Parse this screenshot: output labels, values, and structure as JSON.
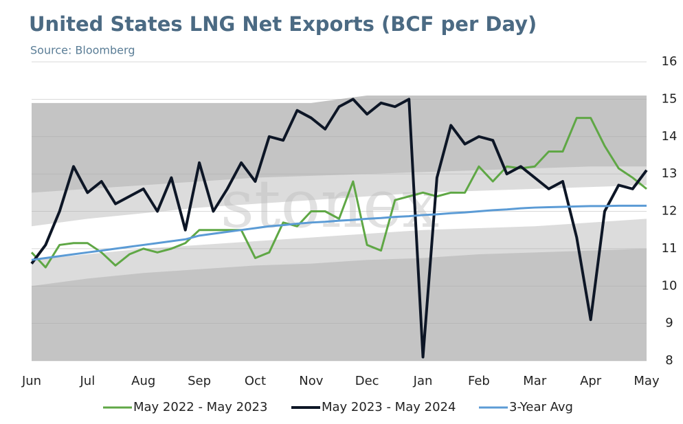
{
  "chart_data": {
    "type": "line",
    "title": "United States LNG Net Exports (BCF per Day)",
    "subtitle": "Source: Bloomberg",
    "watermark": "stonex",
    "categories": [
      "Jun",
      null,
      null,
      null,
      "Jul",
      null,
      null,
      null,
      "Aug",
      null,
      null,
      null,
      "Sep",
      null,
      null,
      null,
      "Oct",
      null,
      null,
      null,
      "Nov",
      null,
      null,
      null,
      "Dec",
      null,
      null,
      null,
      "Jan",
      null,
      null,
      null,
      "Feb",
      null,
      null,
      null,
      "Mar",
      null,
      null,
      null,
      "Apr",
      null,
      null,
      null,
      "May"
    ],
    "ylim": [
      8,
      16
    ],
    "yticks": [
      8,
      9,
      10,
      11,
      12,
      13,
      14,
      15,
      16
    ],
    "grid": true,
    "legend": "bottom",
    "bands": [
      {
        "color": "#c4c4c4",
        "lower": [
          8,
          8,
          8,
          8,
          8,
          8,
          8,
          8,
          8,
          8,
          8,
          8
        ],
        "upper": [
          14.9,
          14.9,
          14.9,
          14.9,
          14.9,
          14.9,
          15.1,
          15.1,
          15.1,
          15.1,
          15.1,
          15.1
        ]
      },
      {
        "color": "#dcdcdc",
        "lower": [
          10.0,
          10.2,
          10.35,
          10.45,
          10.55,
          10.6,
          10.7,
          10.75,
          10.85,
          10.9,
          10.95,
          11.0
        ],
        "upper": [
          12.5,
          12.6,
          12.7,
          12.8,
          12.9,
          12.95,
          13.0,
          13.05,
          13.1,
          13.15,
          13.2,
          13.2
        ]
      },
      {
        "color": "#ffffff",
        "lower": [
          10.7,
          10.85,
          11.0,
          11.1,
          11.2,
          11.3,
          11.4,
          11.5,
          11.55,
          11.6,
          11.7,
          11.8
        ],
        "upper": [
          11.6,
          11.8,
          11.95,
          12.1,
          12.2,
          12.3,
          12.4,
          12.5,
          12.55,
          12.6,
          12.65,
          12.7
        ]
      }
    ],
    "series": [
      {
        "name": "May 2022 - May 2023",
        "color": "#5fa745",
        "width": 3,
        "values": [
          10.9,
          10.5,
          11.1,
          11.15,
          11.15,
          10.9,
          10.55,
          10.85,
          11.0,
          10.9,
          11.0,
          11.15,
          11.5,
          11.5,
          11.5,
          11.5,
          10.75,
          10.9,
          11.7,
          11.6,
          12.0,
          12.0,
          11.8,
          12.8,
          11.1,
          10.95,
          12.3,
          12.4,
          12.5,
          12.4,
          12.5,
          12.5,
          13.2,
          12.8,
          13.2,
          13.15,
          13.2,
          13.6,
          13.6,
          14.5,
          14.5,
          13.75,
          13.15,
          12.9,
          12.6
        ]
      },
      {
        "name": "May 2023 - May 2024",
        "color": "#0d1626",
        "width": 4,
        "values": [
          10.6,
          11.1,
          12.0,
          13.2,
          12.5,
          12.8,
          12.2,
          12.4,
          12.6,
          12.0,
          12.9,
          11.5,
          13.3,
          12.0,
          12.6,
          13.3,
          12.8,
          14.0,
          13.9,
          14.7,
          14.5,
          14.2,
          14.8,
          15.0,
          14.6,
          14.9,
          14.8,
          15.0,
          8.1,
          12.9,
          14.3,
          13.8,
          14.0,
          13.9,
          13.0,
          13.2,
          12.9,
          12.6,
          12.8,
          11.3,
          9.1,
          12.0,
          12.7,
          12.6,
          13.1
        ]
      },
      {
        "name": "3-Year Avg",
        "color": "#5b9bd5",
        "width": 3,
        "values": [
          10.7,
          10.75,
          10.8,
          10.85,
          10.9,
          10.95,
          11.0,
          11.05,
          11.1,
          11.15,
          11.2,
          11.25,
          11.35,
          11.4,
          11.45,
          11.5,
          11.55,
          11.6,
          11.63,
          11.67,
          11.7,
          11.72,
          11.75,
          11.77,
          11.8,
          11.82,
          11.85,
          11.87,
          11.9,
          11.92,
          11.95,
          11.97,
          12.0,
          12.03,
          12.05,
          12.08,
          12.1,
          12.11,
          12.12,
          12.13,
          12.14,
          12.14,
          12.15,
          12.15,
          12.15
        ]
      }
    ]
  }
}
